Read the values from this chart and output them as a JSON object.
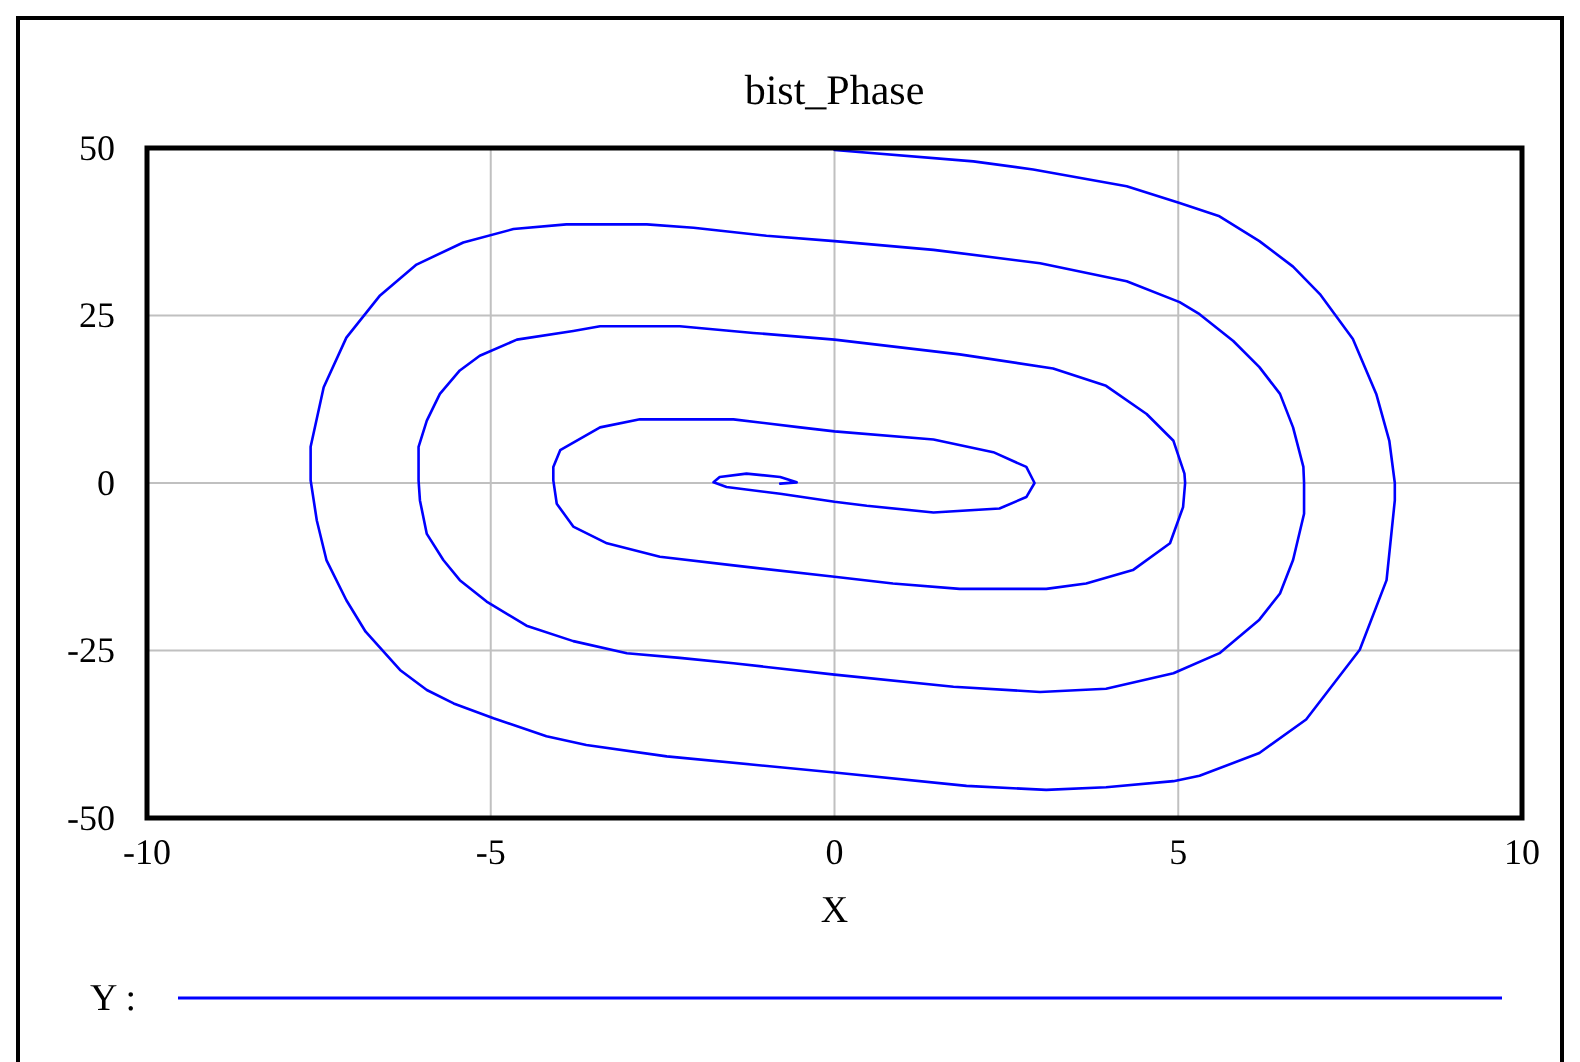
{
  "chart_data": {
    "type": "line",
    "title": "bist_Phase",
    "xlabel": "X",
    "xlim": [
      -10,
      10
    ],
    "xticks": [
      -10,
      -5,
      0,
      5,
      10
    ],
    "ylim": [
      -50,
      50
    ],
    "yticks": [
      -50,
      -25,
      0,
      25,
      50
    ],
    "grid": true,
    "legend": "bottom",
    "series": [
      {
        "name": "Y :",
        "color": "#0000ff",
        "x": [
          0,
          2.02,
          2.89,
          4.25,
          5.02,
          5.6,
          6.18,
          6.67,
          7.06,
          7.54,
          7.88,
          8.07,
          8.15,
          8.15,
          8.03,
          7.64,
          6.86,
          6.18,
          5.31,
          4.93,
          3.95,
          3.08,
          1.92,
          0,
          -2.44,
          -3.61,
          -4.19,
          -4.96,
          -5.54,
          -5.93,
          -6.32,
          -6.82,
          -7.1,
          -7.39,
          -7.53,
          -7.62,
          -7.62,
          -7.43,
          -7.1,
          -6.61,
          -6.08,
          -5.4,
          -4.67,
          -3.9,
          -2.73,
          -2.05,
          -0.99,
          0,
          1.44,
          2.99,
          4.25,
          5.02,
          5.31,
          5.8,
          6.18,
          6.48,
          6.67,
          6.82,
          6.83,
          6.83,
          6.67,
          6.48,
          6.18,
          5.6,
          4.93,
          3.95,
          2.99,
          1.73,
          0,
          -1.47,
          -2.25,
          -3.02,
          -3.8,
          -4.48,
          -5.06,
          -5.45,
          -5.69,
          -5.93,
          -6.03,
          -6.05,
          -6.05,
          -5.93,
          -5.74,
          -5.45,
          -5.16,
          -4.62,
          -3.8,
          -3.41,
          -2.25,
          -1.18,
          0,
          1.82,
          3.18,
          3.95,
          4.54,
          4.93,
          5.09,
          5.1,
          5.07,
          4.88,
          4.34,
          3.66,
          3.08,
          1.82,
          0.85,
          0,
          -1.47,
          -2.54,
          -3.31,
          -3.8,
          -4.04,
          -4.09,
          -4.09,
          -3.99,
          -3.41,
          -2.83,
          -1.47,
          -0.5,
          0,
          1.44,
          2.31,
          2.79,
          2.91,
          2.79,
          2.4,
          1.44,
          0.47,
          0,
          -0.79,
          -1.57,
          -1.76,
          -1.67,
          -1.28,
          -0.79,
          -0.55,
          -0.79
        ],
        "values": [
          49.7,
          48.0,
          46.8,
          44.3,
          41.8,
          39.8,
          36.1,
          32.3,
          28.2,
          21.5,
          13.3,
          6.3,
          0,
          -2.6,
          -14.5,
          -24.9,
          -35.3,
          -40.3,
          -43.7,
          -44.5,
          -45.4,
          -45.8,
          -45.2,
          -43.2,
          -40.8,
          -39.1,
          -37.8,
          -35.1,
          -32.9,
          -30.9,
          -27.9,
          -22.2,
          -17.5,
          -11.5,
          -5.6,
          0.4,
          5.4,
          14.3,
          21.7,
          28.0,
          32.6,
          35.9,
          37.9,
          38.6,
          38.6,
          38.1,
          36.9,
          36.1,
          34.8,
          32.8,
          30.1,
          27.0,
          25.2,
          21.2,
          17.3,
          13.3,
          8.3,
          2.4,
          0,
          -4.6,
          -11.5,
          -16.5,
          -20.4,
          -25.4,
          -28.4,
          -30.7,
          -31.2,
          -30.4,
          -28.6,
          -26.9,
          -26.1,
          -25.4,
          -23.6,
          -21.3,
          -17.7,
          -14.5,
          -11.5,
          -7.6,
          -2.6,
          0.4,
          5.4,
          9.3,
          13.3,
          16.8,
          19.0,
          21.4,
          22.7,
          23.4,
          23.4,
          22.4,
          21.4,
          19.2,
          17.1,
          14.5,
          10.3,
          6.3,
          1.4,
          0,
          -3.6,
          -9.0,
          -13.0,
          -15.0,
          -15.8,
          -15.8,
          -15.0,
          -14.0,
          -12.3,
          -11.0,
          -9.0,
          -6.5,
          -3.1,
          0.4,
          2.4,
          4.9,
          8.3,
          9.5,
          9.5,
          8.3,
          7.7,
          6.5,
          4.6,
          2.4,
          0,
          -2.1,
          -3.8,
          -4.4,
          -3.4,
          -2.8,
          -1.6,
          -0.6,
          0.1,
          0.9,
          1.4,
          0.9,
          0.1,
          -0.1
        ]
      }
    ]
  }
}
